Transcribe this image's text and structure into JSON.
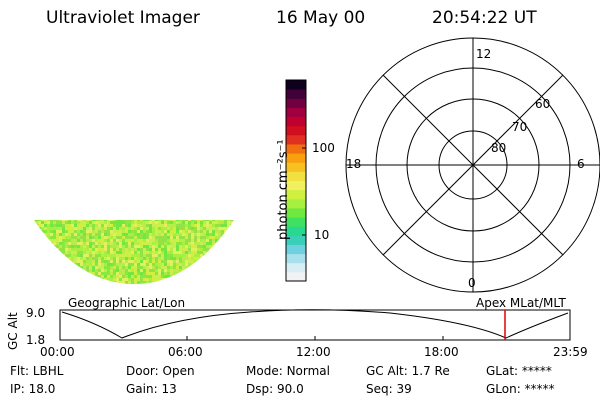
{
  "header": {
    "title": "Ultraviolet Imager",
    "date": "16 May 00",
    "time": "20:54:22 UT"
  },
  "colorbar": {
    "label": "photon cm⁻²s⁻¹",
    "ticks": [
      "100",
      "10"
    ],
    "colors": [
      "#f2f2f2",
      "#d8eef4",
      "#a8e0ec",
      "#6fd0e0",
      "#3ad0b8",
      "#28d890",
      "#40e060",
      "#70e840",
      "#a8f040",
      "#d0f040",
      "#f0f060",
      "#f0e040",
      "#f8c020",
      "#f8a010",
      "#f07010",
      "#e03020",
      "#d01020",
      "#c00030",
      "#a00040",
      "#700040",
      "#400038",
      "#100020"
    ]
  },
  "geo_label": "Geographic Lat/Lon",
  "polar": {
    "label": "Apex MLat/MLT",
    "mlt_labels": {
      "top": "12",
      "left": "18",
      "right": "6",
      "bottom": "0"
    },
    "lat_labels": [
      "60",
      "70",
      "80"
    ]
  },
  "altitude_plot": {
    "ylabel": "GC Alt",
    "yticks": [
      "9.0",
      "1.8"
    ],
    "xticks": [
      "00:00",
      "06:00",
      "12:00",
      "18:00",
      "23:59"
    ],
    "marker_color": "#e00000"
  },
  "info": {
    "row1": [
      {
        "key": "Flt:",
        "value": "LBHL"
      },
      {
        "key": "Door:",
        "value": "Open"
      },
      {
        "key": "Mode:",
        "value": "Normal"
      },
      {
        "key": "GC Alt:",
        "value": "1.7 Re"
      },
      {
        "key": "GLat:",
        "value": "*****"
      }
    ],
    "row2": [
      {
        "key": "IP:",
        "value": "18.0"
      },
      {
        "key": "Gain:",
        "value": "13"
      },
      {
        "key": "Dsp:",
        "value": "90.0"
      },
      {
        "key": "Seq:",
        "value": "39"
      },
      {
        "key": "GLon:",
        "value": "*****"
      }
    ]
  }
}
